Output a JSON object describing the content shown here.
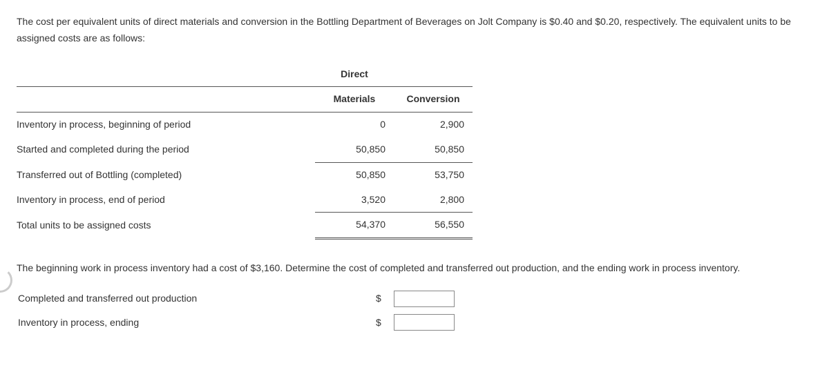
{
  "intro_line1": "The cost per equivalent units of direct materials and conversion in the Bottling Department of Beverages on Jolt Company is $0.40 and $0.20, respectively.",
  "intro_line2": "The equivalent units to be assigned costs are as follows:",
  "table": {
    "header_col1_line1": "Direct",
    "header_col1_line2": "Materials",
    "header_col2": "Conversion",
    "rows": [
      {
        "label": "Inventory in process, beginning of period",
        "dm": "0",
        "conv": "2,900"
      },
      {
        "label": "Started and completed during the period",
        "dm": "50,850",
        "conv": "50,850"
      },
      {
        "label": "Transferred out of Bottling (completed)",
        "dm": "50,850",
        "conv": "53,750"
      },
      {
        "label": "Inventory in process, end of period",
        "dm": "3,520",
        "conv": "2,800"
      },
      {
        "label": "Total units to be assigned costs",
        "dm": "54,370",
        "conv": "56,550"
      }
    ]
  },
  "question": "The beginning work in process inventory had a cost of $3,160. Determine the cost of completed and transferred out production, and the ending work in process inventory.",
  "answers": {
    "row1_label": "Completed and transferred out production",
    "row2_label": "Inventory in process, ending",
    "currency": "$"
  }
}
